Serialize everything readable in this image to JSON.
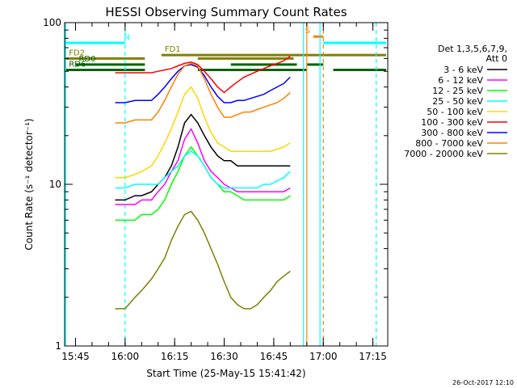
{
  "chart_data": {
    "type": "line",
    "title": "HESSI Observing Summary Count Rates",
    "xlabel": "Start Time (25-May-15 15:41:42)",
    "ylabel": "Count Rate (s⁻¹ detector⁻¹)",
    "yscale": "log",
    "ylim": [
      1,
      100
    ],
    "xlim": [
      "15:41:42",
      "17:19:30"
    ],
    "x_ticks": [
      "15:45",
      "16:00",
      "16:15",
      "16:30",
      "16:45",
      "17:00",
      "17:15"
    ],
    "y_ticks": [
      "1",
      "10",
      "100"
    ],
    "grid": false,
    "legend_position": "right",
    "legend_header": [
      "Det 1,3,5,6,7,9,",
      "Att 0"
    ],
    "timestamp": "26-Oct-2017 12:10",
    "x": [
      "15:57",
      "15:58",
      "16:00",
      "16:03",
      "16:05",
      "16:08",
      "16:10",
      "16:12",
      "16:14",
      "16:16",
      "16:18",
      "16:20",
      "16:22",
      "16:24",
      "16:26",
      "16:28",
      "16:30",
      "16:32",
      "16:34",
      "16:36",
      "16:38",
      "16:40",
      "16:42",
      "16:44",
      "16:46",
      "16:48",
      "16:50"
    ],
    "series": [
      {
        "name": "3 - 6 keV",
        "color": "#000000",
        "values": [
          8,
          8,
          8,
          8.5,
          8.5,
          9,
          10,
          11,
          13,
          17,
          24,
          27,
          24,
          20,
          17,
          15,
          14,
          14,
          13,
          13,
          13,
          13,
          13,
          13,
          13,
          13,
          13
        ]
      },
      {
        "name": "6 - 12 keV",
        "color": "#ff00ff",
        "values": [
          7.5,
          7.5,
          7.5,
          7.5,
          8,
          8,
          9,
          10,
          12,
          14,
          19,
          22,
          18,
          14,
          12,
          11,
          10,
          9.5,
          9,
          9,
          9,
          9,
          9,
          9,
          9,
          9,
          9.5
        ]
      },
      {
        "name": "12 - 25 keV",
        "color": "#00ff00",
        "values": [
          6,
          6,
          6,
          6,
          6.5,
          6.5,
          7,
          8,
          10,
          12,
          15,
          17,
          15,
          13,
          11,
          10,
          9,
          9,
          8.5,
          8,
          8,
          8,
          8,
          8,
          8,
          8,
          8.5
        ]
      },
      {
        "name": "25 - 50 keV",
        "color": "#00ffff",
        "values": [
          9.5,
          9.5,
          9.5,
          10,
          10,
          10,
          10,
          11,
          12,
          13,
          15,
          16,
          15,
          13,
          11,
          10,
          9.5,
          9.5,
          9.5,
          9.5,
          9.5,
          9.5,
          10,
          10,
          10.5,
          11,
          12
        ]
      },
      {
        "name": "50 - 100 keV",
        "color": "#ffd700",
        "values": [
          11,
          11,
          11,
          11.5,
          12,
          13,
          15,
          18,
          22,
          28,
          36,
          40,
          34,
          26,
          21,
          18,
          17,
          16,
          16,
          16,
          16,
          16,
          16,
          16,
          16.5,
          17,
          18
        ]
      },
      {
        "name": "100 - 300 keV",
        "color": "#ff0000",
        "values": [
          49,
          49,
          49,
          49,
          49,
          49,
          50,
          51,
          52,
          54,
          56,
          57,
          55,
          50,
          45,
          40,
          37,
          40,
          43,
          46,
          48,
          50,
          52,
          54,
          56,
          58,
          62
        ]
      },
      {
        "name": "300 - 800 keV",
        "color": "#0000ff",
        "values": [
          32,
          32,
          32,
          33,
          33,
          33,
          36,
          40,
          45,
          50,
          54,
          55,
          53,
          47,
          40,
          35,
          32,
          32,
          33,
          33,
          34,
          35,
          36,
          38,
          40,
          42,
          46
        ]
      },
      {
        "name": "800 - 7000 keV",
        "color": "#ff8000",
        "values": [
          24,
          24,
          24,
          25,
          25,
          25,
          28,
          33,
          40,
          48,
          54,
          56,
          54,
          45,
          36,
          30,
          26,
          26,
          27,
          28,
          28,
          29,
          30,
          31,
          32,
          34,
          37
        ]
      },
      {
        "name": "7000 - 20000 keV",
        "color": "#808000",
        "values": [
          1.7,
          1.7,
          1.7,
          2,
          2.2,
          2.6,
          3,
          3.5,
          4.5,
          5.5,
          6.5,
          6.8,
          6,
          5,
          4,
          3.2,
          2.5,
          2,
          1.8,
          1.7,
          1.7,
          1.8,
          2,
          2.2,
          2.5,
          2.7,
          2.9
        ]
      }
    ],
    "flag_bars": [
      {
        "label": "N",
        "color": "#00ffff",
        "y": 75,
        "segments": [
          [
            "15:42",
            "16:00"
          ],
          [
            "16:00",
            "16:00"
          ],
          [
            "17:00",
            "17:19"
          ]
        ]
      },
      {
        "label": "FD1",
        "color": "#808000",
        "y": 63,
        "segments": [
          [
            "16:11",
            "17:19"
          ]
        ]
      },
      {
        "label": "FD2",
        "color": "#808000",
        "y": 60,
        "segments": [
          [
            "15:42",
            "16:06"
          ],
          [
            "16:22",
            "16:51"
          ]
        ]
      },
      {
        "label": "RD0",
        "color": "#006400",
        "y": 55,
        "segments": [
          [
            "15:45",
            "16:06"
          ],
          [
            "16:32",
            "16:52"
          ],
          [
            "16:55",
            "17:00"
          ]
        ]
      },
      {
        "label": "RD6",
        "color": "#006400",
        "y": 51,
        "segments": [
          [
            "15:42",
            "16:06"
          ],
          [
            "16:22",
            "16:55"
          ],
          [
            "17:03",
            "17:19"
          ]
        ]
      },
      {
        "label": "S",
        "color": "#ff8000",
        "y": 82,
        "segments": [
          [
            "16:57",
            "17:00"
          ]
        ]
      }
    ],
    "vertical_markers": [
      {
        "time": "15:42",
        "color": "#00ffff",
        "style": "solid"
      },
      {
        "time": "16:00",
        "color": "#00ffff",
        "style": "dashed"
      },
      {
        "time": "16:54",
        "color": "#00ffff",
        "style": "solid"
      },
      {
        "time": "16:55",
        "color": "#ff8000",
        "style": "solid"
      },
      {
        "time": "16:59",
        "color": "#00ffff",
        "style": "solid"
      },
      {
        "time": "17:00",
        "color": "#ff8000",
        "style": "dashed"
      },
      {
        "time": "17:16",
        "color": "#00ffff",
        "style": "dashed"
      }
    ]
  }
}
